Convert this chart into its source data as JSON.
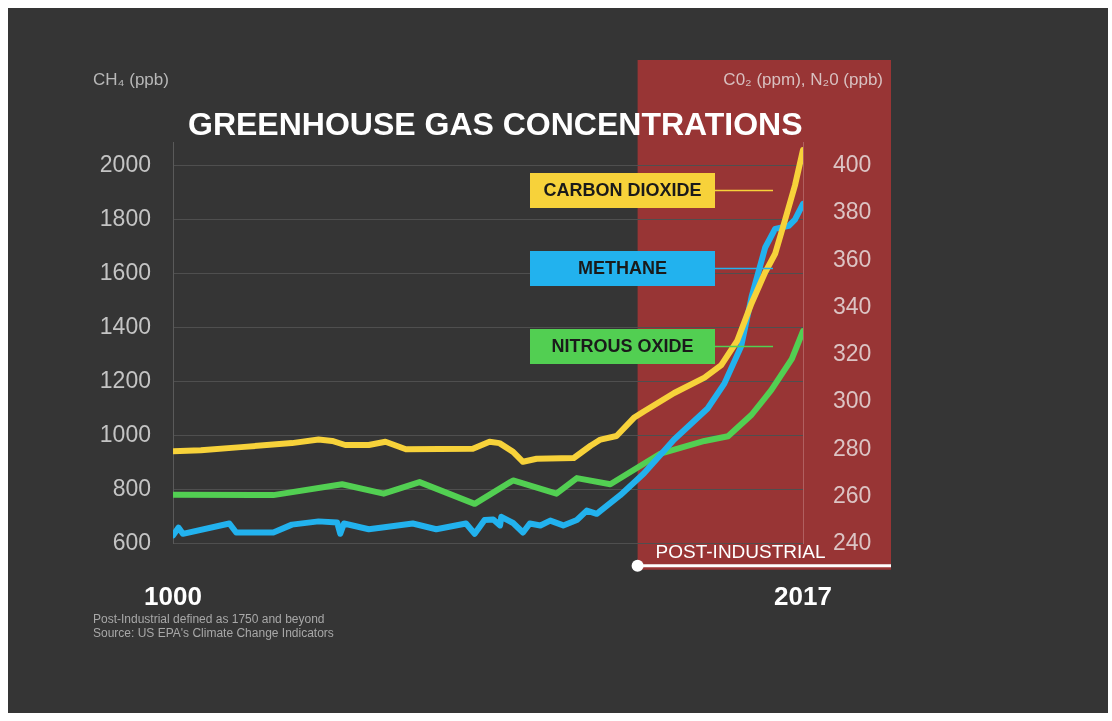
{
  "chart_data": {
    "type": "line",
    "title": "GREENHOUSE GAS CONCENTRATIONS",
    "ylabel": "CH₄ (ppb)",
    "y2label": "C0₂ (ppm), N₂0 (ppb)",
    "xlim": [
      1000,
      2017
    ],
    "xticks": [
      1000,
      2017
    ],
    "ylim": [
      600,
      2087.5
    ],
    "yticks": [
      600,
      800,
      1000,
      1200,
      1400,
      1600,
      1800,
      2000
    ],
    "y2lim": [
      240,
      410
    ],
    "y2ticks": [
      240,
      260,
      280,
      300,
      320,
      340,
      360,
      380,
      400
    ],
    "grid": "y",
    "marker": "none",
    "line_style": "solid",
    "legend": "top right",
    "bands": [
      {
        "axis": "x",
        "from": 1750,
        "to": 2017,
        "label": "POST-INDUSTRIAL",
        "color": "#983535"
      }
    ],
    "annotations": [
      "Post-Industrial defined as 1750 and beyond",
      "Source: US EPA's Climate Change Indicators"
    ],
    "series": [
      {
        "name": "CARBON DIOXIDE",
        "color": "#f7d23a",
        "axis": "y2",
        "x": [
          1000,
          1045,
          1110,
          1192,
          1235,
          1257,
          1278,
          1316,
          1343,
          1376,
          1484,
          1511,
          1527,
          1549,
          1565,
          1587,
          1647,
          1674,
          1690,
          1716,
          1744,
          1760,
          1809,
          1858,
          1885,
          1911,
          1934,
          1956,
          1972,
          1988,
          2004,
          2017
        ],
        "values": [
          279.2,
          279.6,
          280.9,
          282.6,
          284.1,
          283.5,
          281.8,
          281.8,
          283.2,
          280,
          280.2,
          283.2,
          282.6,
          278.9,
          274.7,
          276,
          276.3,
          281.5,
          284.1,
          285.6,
          293.3,
          296,
          303.8,
          310.3,
          315.6,
          326,
          341.8,
          354.9,
          362.7,
          377,
          391.6,
          406.6
        ]
      },
      {
        "name": "METHANE",
        "color": "#22b2ee",
        "axis": "y",
        "x": [
          1000,
          1009,
          1016,
          1091,
          1102,
          1162,
          1192,
          1235,
          1265,
          1270,
          1276,
          1316,
          1338,
          1387,
          1425,
          1473,
          1487,
          1503,
          1517,
          1528,
          1530,
          1549,
          1565,
          1576,
          1593,
          1609,
          1630,
          1652,
          1668,
          1684,
          1722,
          1760,
          1809,
          1863,
          1890,
          1917,
          1934,
          1956,
          1972,
          1994,
          2004,
          2017
        ],
        "values": [
          631,
          660,
          637,
          675,
          642,
          642,
          671,
          683,
          679,
          637,
          675,
          654,
          660,
          675,
          654,
          675,
          637,
          688,
          690,
          668,
          700,
          677,
          642,
          675,
          668,
          686,
          668,
          688,
          723,
          711,
          780,
          860,
          986,
          1101,
          1193,
          1330,
          1514,
          1697,
          1766,
          1777,
          1800,
          1858
        ]
      },
      {
        "name": "NITROUS OXIDE",
        "color": "#52cf52",
        "axis": "y2",
        "x": [
          1000,
          1162,
          1273,
          1340,
          1398,
          1487,
          1549,
          1619,
          1652,
          1706,
          1787,
          1858,
          1896,
          1934,
          1966,
          1999,
          2017
        ],
        "values": [
          260.8,
          260.6,
          265.2,
          261.2,
          266.1,
          256.9,
          266.8,
          261.2,
          267.8,
          265.2,
          278.2,
          283.5,
          285.5,
          294.6,
          305.1,
          318.2,
          330
        ]
      }
    ]
  }
}
